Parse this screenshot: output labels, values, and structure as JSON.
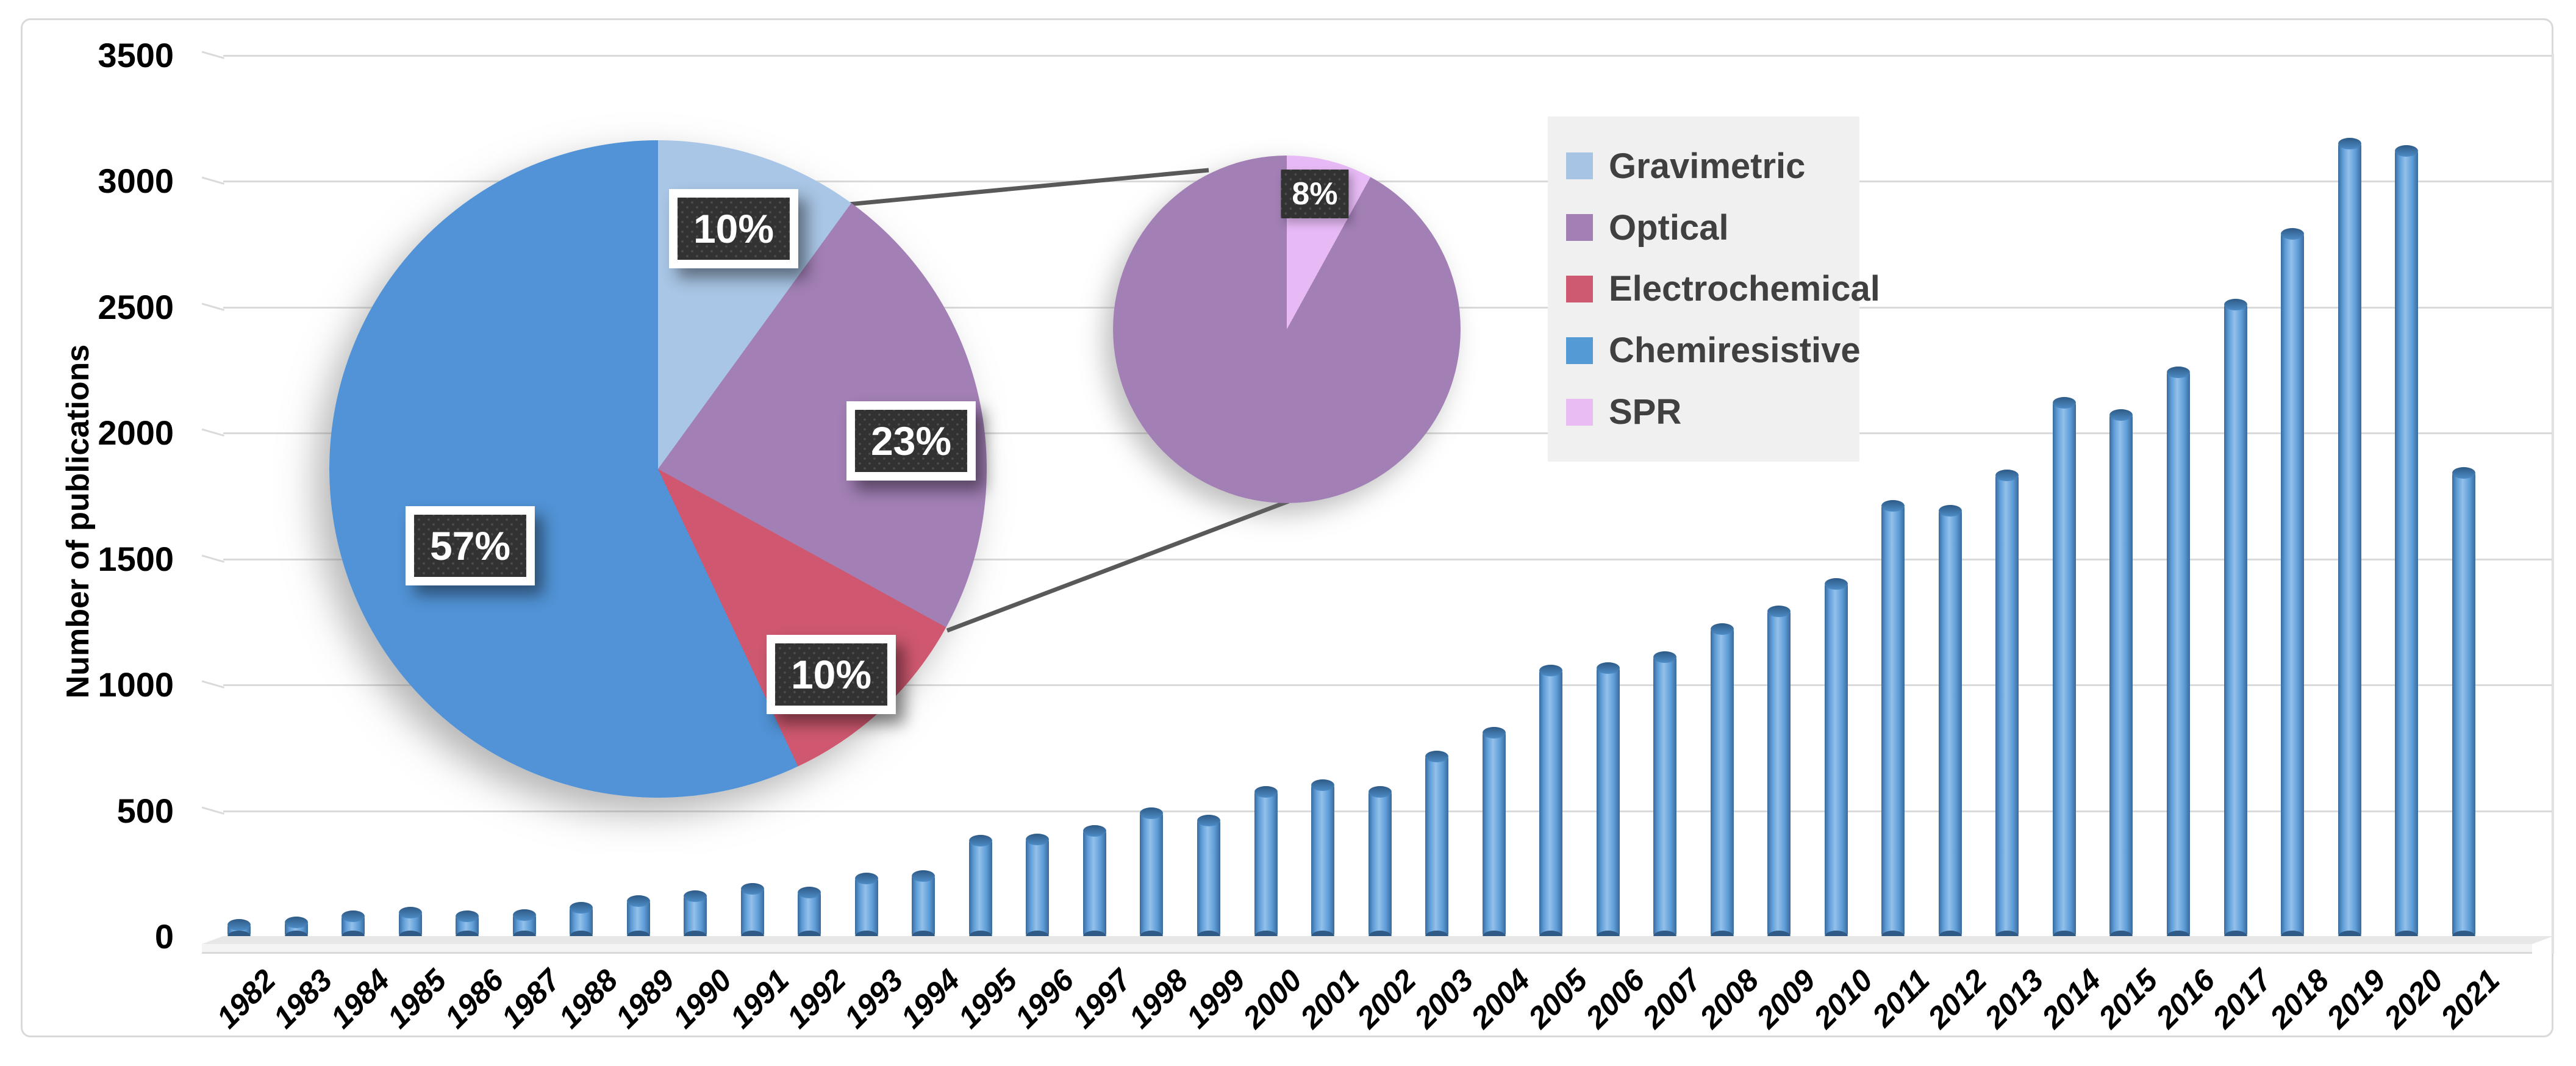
{
  "figure": {
    "border_color": "#d9d9d9",
    "background": "#ffffff",
    "gridline_color": "#dadada"
  },
  "chart_data": [
    {
      "id": "publications-by-year",
      "type": "bar",
      "title": "",
      "xlabel": "",
      "ylabel": "Number of publications",
      "ylim": [
        0,
        3500
      ],
      "ytick_step": 500,
      "yticks": [
        0,
        500,
        1000,
        1500,
        2000,
        2500,
        3000,
        3500
      ],
      "ytick_labels": [
        "0",
        "500",
        "1000",
        "1500",
        "2000",
        "2500",
        "3000",
        "3500"
      ],
      "grid": true,
      "bar_color": "#5b9bd5",
      "categories": [
        "1982",
        "1983",
        "1984",
        "1985",
        "1986",
        "1987",
        "1988",
        "1989",
        "1990",
        "1991",
        "1992",
        "1993",
        "1994",
        "1995",
        "1996",
        "1997",
        "1998",
        "1999",
        "2000",
        "2001",
        "2002",
        "2003",
        "2004",
        "2005",
        "2006",
        "2007",
        "2008",
        "2009",
        "2010",
        "2011",
        "2012",
        "2013",
        "2014",
        "2015",
        "2016",
        "2017",
        "2018",
        "2019",
        "2020",
        "2021"
      ],
      "values": [
        45,
        55,
        80,
        95,
        80,
        85,
        115,
        140,
        160,
        190,
        175,
        230,
        240,
        380,
        385,
        420,
        490,
        460,
        575,
        600,
        575,
        715,
        810,
        1055,
        1065,
        1110,
        1220,
        1290,
        1400,
        1710,
        1690,
        1830,
        2120,
        2070,
        2240,
        2510,
        2790,
        3150,
        3120,
        1840
      ]
    },
    {
      "id": "sensor-type-share",
      "type": "pie",
      "labels": [
        "Gravimetric",
        "Optical",
        "Electrochemical",
        "Chemiresistive"
      ],
      "values": [
        10,
        23,
        10,
        57
      ],
      "data_labels": [
        "10%",
        "23%",
        "10%",
        "57%"
      ],
      "colors": [
        "#a9c6e6",
        "#a27fb5",
        "#cf5870",
        "#5193d6"
      ],
      "start_angle": 0,
      "direction": "clockwise"
    },
    {
      "id": "optical-breakout",
      "type": "pie",
      "labels": [
        "SPR",
        "Optical"
      ],
      "values": [
        8,
        92
      ],
      "data_labels": [
        "8%"
      ],
      "colors": [
        "#e7baf5",
        "#a27fb5"
      ],
      "start_angle": 0,
      "direction": "clockwise"
    }
  ],
  "legend": {
    "position": "top-right",
    "background": "#f0f0f0",
    "text_color": "#404040",
    "items": [
      {
        "label": "Gravimetric",
        "color": "#a7c4e4"
      },
      {
        "label": "Optical",
        "color": "#a27fb5"
      },
      {
        "label": "Electrochemical",
        "color": "#cd5a70"
      },
      {
        "label": "Chemiresistive",
        "color": "#549bd5"
      },
      {
        "label": "SPR",
        "color": "#e9bcf4"
      }
    ]
  },
  "connector_color": "#595959"
}
